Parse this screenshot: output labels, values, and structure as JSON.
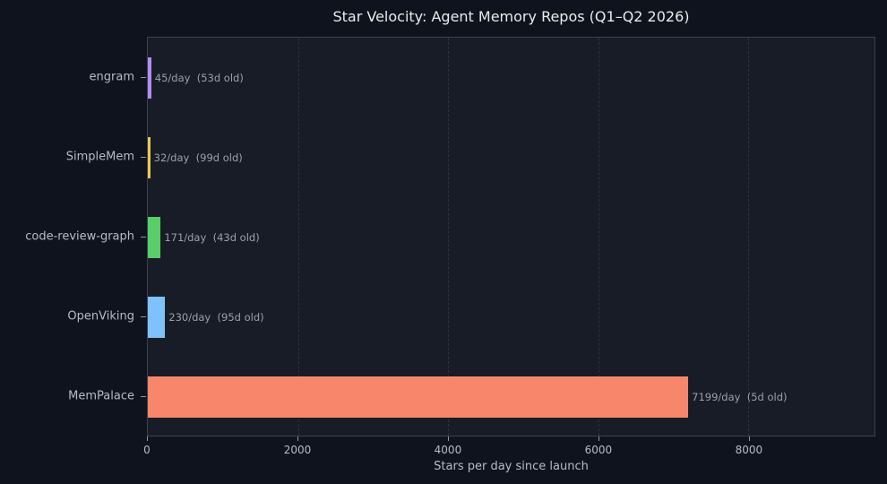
{
  "chart_data": {
    "type": "bar",
    "orientation": "horizontal",
    "title": "Star Velocity: Agent Memory Repos (Q1–Q2 2026)",
    "xlabel": "Stars per day since launch",
    "ylabel": "",
    "categories": [
      "engram",
      "SimpleMem",
      "code-review-graph",
      "OpenViking",
      "MemPalace"
    ],
    "values": [
      45,
      32,
      171,
      230,
      7199
    ],
    "annotations": [
      "45/day  (53d old)",
      "32/day  (99d old)",
      "171/day  (43d old)",
      "230/day  (95d old)",
      "7199/day  (5d old)"
    ],
    "ages_days": [
      53,
      99,
      43,
      95,
      5
    ],
    "bar_colors": [
      "#b48cf2",
      "#edc84e",
      "#58cd68",
      "#7fc1fa",
      "#f7866b"
    ],
    "xticks": [
      0,
      2000,
      4000,
      6000,
      8000
    ],
    "xlim": [
      0,
      9680
    ],
    "grid": "vertical-dashed",
    "legend": "none"
  },
  "theme": {
    "figure_background": "#0f131d",
    "plot_background": "#171c26",
    "spine_color": "#3a4150",
    "gridline_color": "#2b3240",
    "title_color": "#e8eaee",
    "tick_label_color": "#b6bcc6",
    "annotation_color": "#9aa1ac"
  }
}
